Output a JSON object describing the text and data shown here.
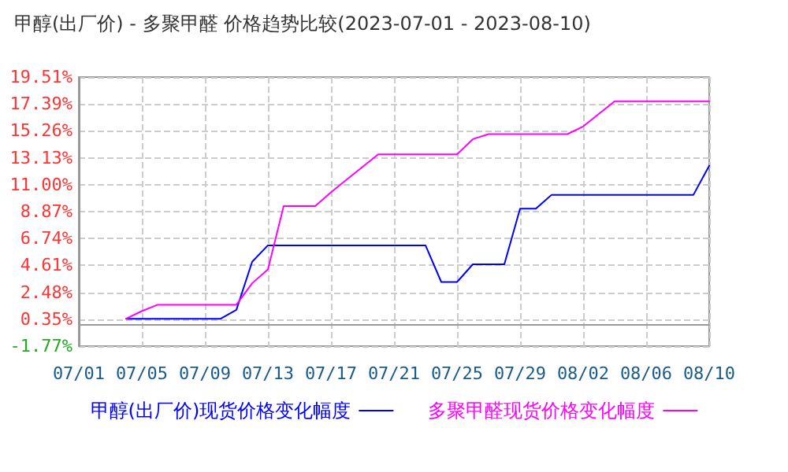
{
  "chart_data": {
    "type": "line",
    "title": "甲醇(出厂价) - 多聚甲醛 价格趋势比较(2023-07-01 - 2023-08-10)",
    "x": [
      "2023-07-04",
      "2023-07-05",
      "2023-07-06",
      "2023-07-07",
      "2023-07-08",
      "2023-07-09",
      "2023-07-10",
      "2023-07-11",
      "2023-07-12",
      "2023-07-13",
      "2023-07-14",
      "2023-07-15",
      "2023-07-16",
      "2023-07-17",
      "2023-07-18",
      "2023-07-19",
      "2023-07-20",
      "2023-07-21",
      "2023-07-22",
      "2023-07-23",
      "2023-07-24",
      "2023-07-25",
      "2023-07-26",
      "2023-07-27",
      "2023-07-28",
      "2023-07-29",
      "2023-07-30",
      "2023-07-31",
      "2023-08-01",
      "2023-08-02",
      "2023-08-03",
      "2023-08-04",
      "2023-08-05",
      "2023-08-06",
      "2023-08-07",
      "2023-08-08",
      "2023-08-09",
      "2023-08-10"
    ],
    "series": [
      {
        "name": "甲醇(出厂价)现货价格变化幅度",
        "color": "#0000ff",
        "values": [
          0.4,
          0.4,
          0.4,
          0.4,
          0.4,
          0.4,
          0.4,
          1.1,
          4.9,
          6.2,
          6.2,
          6.2,
          6.2,
          6.2,
          6.2,
          6.2,
          6.2,
          6.2,
          6.2,
          6.2,
          3.3,
          3.3,
          4.7,
          4.7,
          4.7,
          9.1,
          9.1,
          10.2,
          10.2,
          10.2,
          10.2,
          10.2,
          10.2,
          10.2,
          10.2,
          10.2,
          10.2,
          12.5
        ]
      },
      {
        "name": "多聚甲醛现货价格变化幅度",
        "color": "#ff00ff",
        "values": [
          0.4,
          1.0,
          1.5,
          1.5,
          1.5,
          1.5,
          1.5,
          1.5,
          3.2,
          4.3,
          9.3,
          9.3,
          9.3,
          10.4,
          11.4,
          12.4,
          13.4,
          13.4,
          13.4,
          13.4,
          13.4,
          13.4,
          14.6,
          15.0,
          15.0,
          15.0,
          15.0,
          15.0,
          15.0,
          15.6,
          16.6,
          17.6,
          17.6,
          17.6,
          17.6,
          17.6,
          17.6,
          17.6
        ]
      }
    ],
    "xlim": [
      "2023-07-01",
      "2023-08-10"
    ],
    "xticks": [
      {
        "value": "2023-07-01",
        "label": "07/01"
      },
      {
        "value": "2023-07-05",
        "label": "07/05"
      },
      {
        "value": "2023-07-09",
        "label": "07/09"
      },
      {
        "value": "2023-07-13",
        "label": "07/13"
      },
      {
        "value": "2023-07-17",
        "label": "07/17"
      },
      {
        "value": "2023-07-21",
        "label": "07/21"
      },
      {
        "value": "2023-07-25",
        "label": "07/25"
      },
      {
        "value": "2023-07-29",
        "label": "07/29"
      },
      {
        "value": "2023-08-02",
        "label": "08/02"
      },
      {
        "value": "2023-08-06",
        "label": "08/06"
      },
      {
        "value": "2023-08-10",
        "label": "08/10"
      }
    ],
    "ylim": [
      -1.77,
      19.51
    ],
    "yticks": [
      {
        "value": -1.77,
        "label": "-1.77%"
      },
      {
        "value": 0.35,
        "label": "0.35%"
      },
      {
        "value": 2.48,
        "label": "2.48%"
      },
      {
        "value": 4.61,
        "label": "4.61%"
      },
      {
        "value": 6.74,
        "label": "6.74%"
      },
      {
        "value": 8.87,
        "label": "8.87%"
      },
      {
        "value": 11.0,
        "label": "11.00%"
      },
      {
        "value": 13.13,
        "label": "13.13%"
      },
      {
        "value": 15.26,
        "label": "15.26%"
      },
      {
        "value": 17.39,
        "label": "17.39%"
      },
      {
        "value": 19.51,
        "label": "19.51%"
      }
    ],
    "grid": true,
    "legend": "bottom",
    "marker": "none",
    "line_style": "solid"
  }
}
